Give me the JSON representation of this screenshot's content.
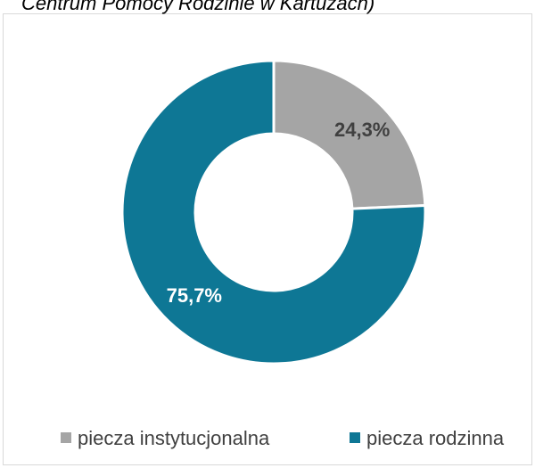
{
  "chart_data": {
    "type": "donut",
    "title": "Centrum Pomocy Rodzinie w Kartuzach)",
    "categories": [
      "piecza instytucjonalna",
      "piecza rodzinna"
    ],
    "values": [
      24.3,
      75.7
    ],
    "value_labels": [
      "24,3%",
      "75,7%"
    ],
    "colors": [
      "#a5a5a5",
      "#0e7795"
    ],
    "legend": "bottom"
  }
}
